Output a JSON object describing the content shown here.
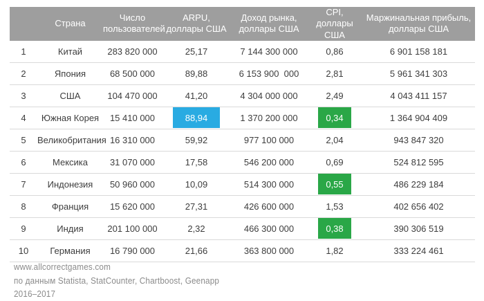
{
  "colors": {
    "header_bg": "#9e9e9e",
    "header_text": "#ffffff",
    "body_text": "#3d3d3d",
    "row_divider": "#d9d9d9",
    "highlight_blue": "#29abe2",
    "highlight_green": "#2aa747",
    "footer_text": "#8a8a8a"
  },
  "table": {
    "headers": [
      "",
      "Страна",
      "Число\nпользователей",
      "ARPU,\nдоллары США",
      "Доход рынка,\nдоллары США",
      "CPI,\nдоллары США",
      "Маржинальная прибыль,\nдоллары США"
    ],
    "rows": [
      {
        "rank": "1",
        "country": "Китай",
        "users": "283 820 000",
        "arpu": "25,17",
        "revenue": "7 144 300 000",
        "cpi": "0,86",
        "margin": "6 901 158 181"
      },
      {
        "rank": "2",
        "country": "Япония",
        "users": "68 500 000",
        "arpu": "89,88",
        "revenue": "6 153 900  000",
        "cpi": "2,81",
        "margin": "5 961 341 303"
      },
      {
        "rank": "3",
        "country": "США",
        "users": "104 470 000",
        "arpu": "41,20",
        "revenue": "4 304 000 000",
        "cpi": "2,49",
        "margin": "4 043 411 157"
      },
      {
        "rank": "4",
        "country": "Южная Корея",
        "users": "15 410 000",
        "arpu": "88,94",
        "arpu_highlight": true,
        "revenue": "1 370 200 000",
        "cpi": "0,34",
        "cpi_highlight": true,
        "margin": "1 364 904 409"
      },
      {
        "rank": "5",
        "country": "Великобритания",
        "users": "16 310 000",
        "arpu": "59,92",
        "revenue": "977 100 000",
        "cpi": "2,04",
        "margin": "943 847 320"
      },
      {
        "rank": "6",
        "country": "Мексика",
        "users": "31 070 000",
        "arpu": "17,58",
        "revenue": "546 200 000",
        "cpi": "0,69",
        "margin": "524 812 595"
      },
      {
        "rank": "7",
        "country": "Индонезия",
        "users": "50 960 000",
        "arpu": "10,09",
        "revenue": "514 300 000",
        "cpi": "0,55",
        "cpi_highlight": true,
        "margin": "486 229 184"
      },
      {
        "rank": "8",
        "country": "Франция",
        "users": "15 620 000",
        "arpu": "27,31",
        "revenue": "426 600 000",
        "cpi": "1,53",
        "margin": "402 656 402"
      },
      {
        "rank": "9",
        "country": "Индия",
        "users": "201 100 000",
        "arpu": "2,32",
        "revenue": "466 300 000",
        "cpi": "0,38",
        "cpi_highlight": true,
        "margin": "390 306 519"
      },
      {
        "rank": "10",
        "country": "Германия",
        "users": "16 790 000",
        "arpu": "21,66",
        "revenue": "363 800 000",
        "cpi": "1,82",
        "margin": "333 224 461"
      }
    ]
  },
  "chart_data": {
    "type": "table",
    "columns": [
      "Страна",
      "Число пользователей",
      "ARPU, доллары США",
      "Доход рынка, доллары США",
      "CPI, доллары США",
      "Маржинальная прибыль, доллары США"
    ],
    "rows": [
      [
        "Китай",
        283820000,
        25.17,
        7144300000,
        0.86,
        6901158181
      ],
      [
        "Япония",
        68500000,
        89.88,
        6153900000,
        2.81,
        5961341303
      ],
      [
        "США",
        104470000,
        41.2,
        4304000000,
        2.49,
        4043411157
      ],
      [
        "Южная Корея",
        15410000,
        88.94,
        1370200000,
        0.34,
        1364904409
      ],
      [
        "Великобритания",
        16310000,
        59.92,
        977100000,
        2.04,
        943847320
      ],
      [
        "Мексика",
        31070000,
        17.58,
        546200000,
        0.69,
        524812595
      ],
      [
        "Индонезия",
        50960000,
        10.09,
        514300000,
        0.55,
        486229184
      ],
      [
        "Франция",
        15620000,
        27.31,
        426600000,
        1.53,
        402656402
      ],
      [
        "Индия",
        201100000,
        2.32,
        466300000,
        0.38,
        390306519
      ],
      [
        "Германия",
        16790000,
        21.66,
        363800000,
        1.82,
        333224461
      ]
    ],
    "highlights": [
      {
        "row": "Южная Корея",
        "column": "ARPU, доллары США",
        "color": "#29abe2"
      },
      {
        "row": "Южная Корея",
        "column": "CPI, доллары США",
        "color": "#2aa747"
      },
      {
        "row": "Индонезия",
        "column": "CPI, доллары США",
        "color": "#2aa747"
      },
      {
        "row": "Индия",
        "column": "CPI, доллары США",
        "color": "#2aa747"
      }
    ]
  },
  "footer": {
    "website": "www.allcorrectgames.com",
    "source": "по данным Statista, StatCounter, Chartboost, Geenapp",
    "years": "2016–2017"
  }
}
